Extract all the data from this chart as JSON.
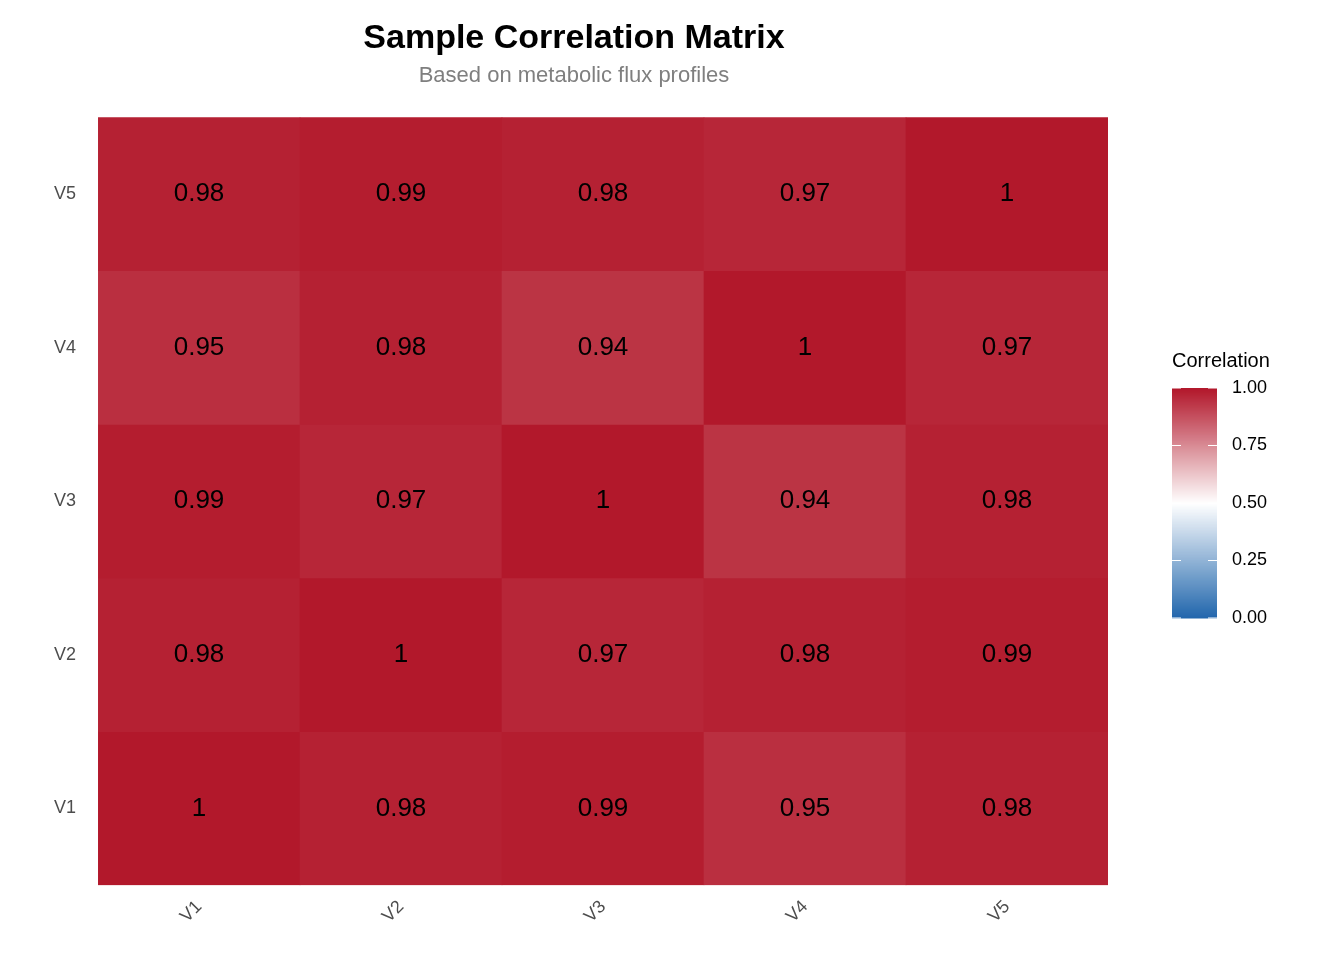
{
  "chart_data": {
    "type": "heatmap",
    "title": "Sample Correlation Matrix",
    "subtitle": "Based on metabolic flux profiles",
    "legend_title": "Correlation",
    "categories": [
      "V1",
      "V2",
      "V3",
      "V4",
      "V5"
    ],
    "y_categories": [
      "V5",
      "V4",
      "V3",
      "V2",
      "V1"
    ],
    "cells": [
      [
        0.98,
        0.99,
        0.98,
        0.97,
        1
      ],
      [
        0.95,
        0.98,
        0.94,
        1,
        0.97
      ],
      [
        0.99,
        0.97,
        1,
        0.94,
        0.98
      ],
      [
        0.98,
        1,
        0.97,
        0.98,
        0.99
      ],
      [
        1,
        0.98,
        0.99,
        0.95,
        0.98
      ]
    ],
    "data_labels": true,
    "clim": [
      0,
      1
    ],
    "cticks": [
      {
        "value": 0,
        "label": "0.00"
      },
      {
        "value": 0.25,
        "label": "0.25"
      },
      {
        "value": 0.5,
        "label": "0.50"
      },
      {
        "value": 0.75,
        "label": "0.75"
      },
      {
        "value": 1,
        "label": "1.00"
      }
    ]
  }
}
